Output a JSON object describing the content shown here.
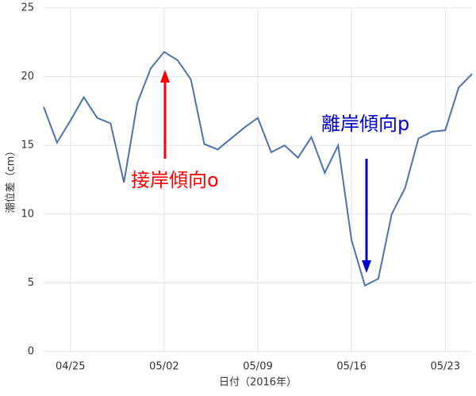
{
  "chart_data": {
    "type": "line",
    "x": [
      "04/23",
      "04/24",
      "04/25",
      "04/26",
      "04/27",
      "04/28",
      "04/29",
      "04/30",
      "05/01",
      "05/02",
      "05/03",
      "05/04",
      "05/05",
      "05/06",
      "05/07",
      "05/08",
      "05/09",
      "05/10",
      "05/11",
      "05/12",
      "05/13",
      "05/14",
      "05/15",
      "05/16",
      "05/17",
      "05/18",
      "05/19",
      "05/20",
      "05/21",
      "05/22",
      "05/23",
      "05/24",
      "05/25"
    ],
    "series": [
      {
        "color": "#4c72b0",
        "values": [
          17.8,
          15.2,
          16.8,
          18.5,
          17.0,
          16.6,
          12.3,
          18.1,
          20.6,
          21.8,
          21.2,
          19.8,
          15.1,
          14.7,
          15.5,
          16.3,
          17.0,
          14.5,
          15.0,
          14.1,
          15.6,
          13.0,
          15.0,
          8.1,
          4.8,
          5.3,
          10.0,
          11.9,
          15.5,
          16.0,
          16.1,
          19.2,
          20.2
        ]
      }
    ],
    "xticks": [
      "04/25",
      "05/02",
      "05/09",
      "05/16",
      "05/23"
    ],
    "ylim": [
      0,
      25
    ],
    "yticks": [
      0,
      5,
      10,
      15,
      20,
      25
    ],
    "grid": true,
    "xlabel": "日付（2016年）",
    "ylabel": "潮位差（cm）",
    "annotations": [
      {
        "text": "接岸傾向o",
        "color": "#ff0000"
      },
      {
        "text": "離岸傾向p",
        "color": "#0000cc"
      }
    ]
  }
}
